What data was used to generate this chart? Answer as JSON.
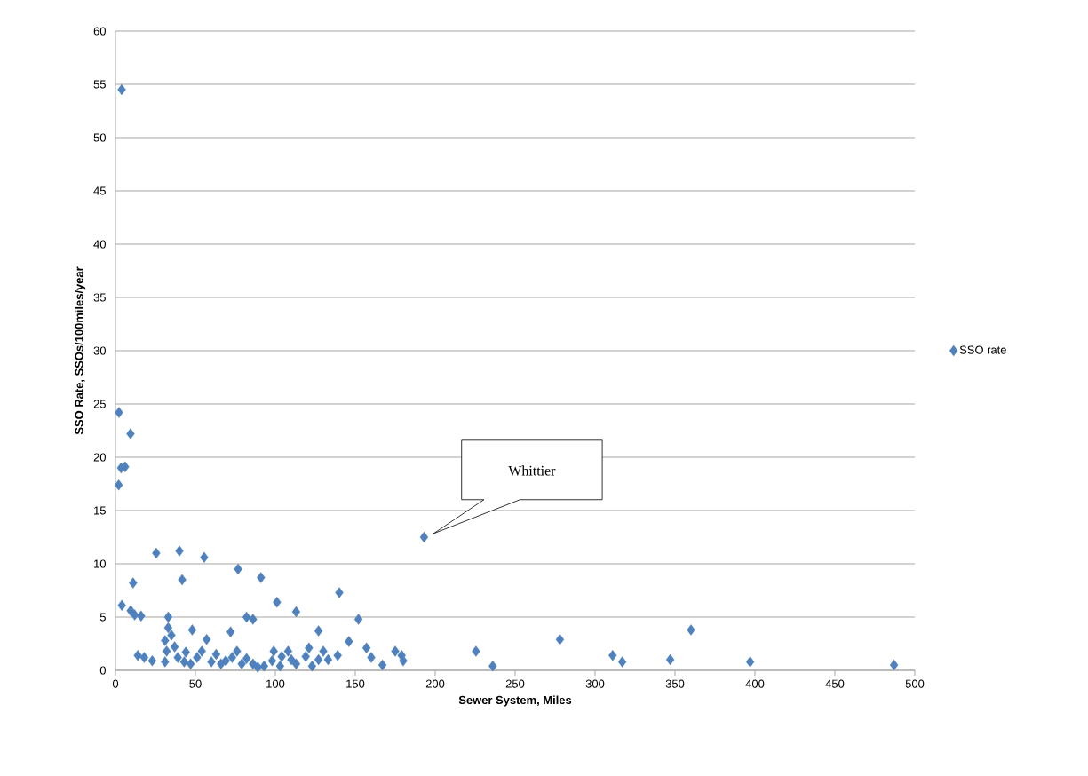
{
  "chart_data": {
    "type": "scatter",
    "xlabel": "Sewer System, Miles",
    "ylabel": "SSO Rate, SSOs/100miles/year",
    "xlim": [
      0,
      500
    ],
    "ylim": [
      0,
      60
    ],
    "xticks": [
      0,
      50,
      100,
      150,
      200,
      250,
      300,
      350,
      400,
      450,
      500
    ],
    "yticks": [
      0,
      5,
      10,
      15,
      20,
      25,
      30,
      35,
      40,
      45,
      50,
      55,
      60
    ],
    "grid": "y",
    "legend": "right",
    "marker": "diamond",
    "annotations": [
      "Whittier"
    ],
    "series": [
      {
        "name": "SSO rate",
        "color": "#4f81bd",
        "x": [
          3.9,
          2.2,
          9.4,
          3.5,
          6,
          2,
          4,
          11,
          25.5,
          40,
          55.5,
          76.7,
          91,
          41.7,
          101,
          113,
          140,
          152,
          9.5,
          12,
          16,
          33,
          33,
          48,
          57,
          72,
          82,
          86,
          127,
          146,
          157,
          193,
          225.5,
          278,
          311,
          317,
          347,
          360,
          397,
          487,
          236,
          175,
          179,
          180,
          167,
          160,
          139,
          133,
          14,
          18,
          23,
          31,
          32,
          31,
          35,
          37,
          39,
          43,
          44,
          47,
          51,
          54,
          60,
          63,
          66,
          69,
          73,
          76,
          79,
          82,
          86,
          89,
          93,
          98,
          99,
          103,
          104,
          108,
          110,
          113,
          119,
          121,
          123,
          127,
          130
        ],
        "values": [
          54.5,
          24.2,
          22.2,
          19,
          19.1,
          17.4,
          6.1,
          8.2,
          11,
          11.2,
          10.6,
          9.5,
          8.7,
          8.5,
          6.4,
          5.5,
          7.3,
          4.8,
          5.6,
          5.2,
          5.1,
          5,
          4,
          3.8,
          2.9,
          3.6,
          5,
          4.8,
          3.7,
          2.7,
          2.1,
          12.5,
          1.8,
          2.9,
          1.4,
          0.8,
          1,
          3.8,
          0.8,
          0.5,
          0.4,
          1.8,
          1.4,
          0.9,
          0.5,
          1.2,
          1.4,
          1,
          1.4,
          1.2,
          0.9,
          0.8,
          1.8,
          2.8,
          3.3,
          2.2,
          1.2,
          0.8,
          1.7,
          0.6,
          1.2,
          1.8,
          0.8,
          1.5,
          0.6,
          0.9,
          1.2,
          1.8,
          0.6,
          1.1,
          0.6,
          0.3,
          0.4,
          0.9,
          1.8,
          0.4,
          1.3,
          1.8,
          1,
          0.6,
          1.3,
          2.1,
          0.4,
          1,
          1.8
        ]
      }
    ]
  }
}
